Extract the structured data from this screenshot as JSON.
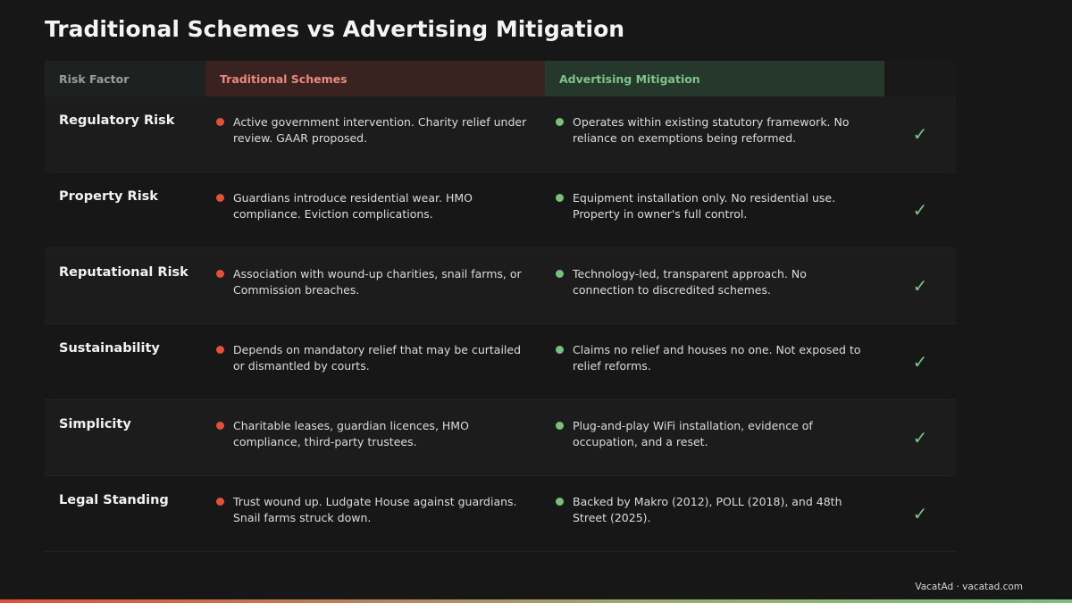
{
  "title": "Traditional Schemes vs Advertising Mitigation",
  "headers": [
    "Risk Factor",
    "Traditional Schemes",
    "Advertising Mitigation"
  ],
  "rows": [
    {
      "factor": "Regulatory Risk",
      "traditional": "Active government intervention. Charity relief under review. GAAR proposed.",
      "advertising": "Operates within existing statutory framework. No reliance on exemptions being reformed.",
      "check": "✓"
    },
    {
      "factor": "Property Risk",
      "traditional": "Guardians introduce residential wear. HMO compliance. Eviction complications.",
      "advertising": "Equipment installation only. No residential use. Property in owner's full control.",
      "check": "✓"
    },
    {
      "factor": "Reputational Risk",
      "traditional": "Association with wound-up charities, snail farms, or Commission breaches.",
      "advertising": "Technology-led, transparent approach. No connection to discredited schemes.",
      "check": "✓"
    },
    {
      "factor": "Sustainability",
      "traditional": "Depends on mandatory relief that may be curtailed or dismantled by courts.",
      "advertising": "Claims no relief and houses no one. Not exposed to relief reforms.",
      "check": "✓"
    },
    {
      "factor": "Simplicity",
      "traditional": "Charitable leases, guardian licences, HMO compliance, third-party trustees.",
      "advertising": "Plug-and-play WiFi installation, evidence of occupation, and a reset.",
      "check": "✓"
    },
    {
      "factor": "Legal Standing",
      "traditional": "Trust wound up. Ludgate House against guardians. Snail farms struck down.",
      "advertising": "Backed by Makro (2012), POLL (2018), and 48th Street (2025).",
      "check": "✓"
    }
  ],
  "footer": "VacatAd · vacatad.com",
  "colors": {
    "traditional": "#e0503d",
    "advertising": "#78c07e"
  }
}
